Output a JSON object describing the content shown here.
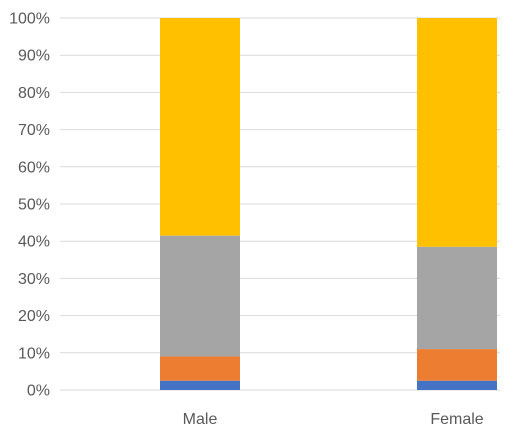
{
  "chart_data": {
    "type": "bar",
    "stacked": true,
    "categories": [
      "Male",
      "Female"
    ],
    "series": [
      {
        "values": [
          2.5,
          2.5
        ],
        "color": "#4472C4"
      },
      {
        "values": [
          6.5,
          8.5
        ],
        "color": "#ED7D31"
      },
      {
        "values": [
          32.5,
          27.5
        ],
        "color": "#A5A5A5"
      },
      {
        "values": [
          58.5,
          61.5
        ],
        "color": "#FFC000"
      }
    ],
    "yticks": [
      "0%",
      "10%",
      "20%",
      "30%",
      "40%",
      "50%",
      "60%",
      "70%",
      "80%",
      "90%",
      "100%"
    ],
    "ylim": [
      0,
      100
    ],
    "grid": true,
    "gridColor": "#D9D9D9",
    "title": "",
    "xlabel": "",
    "ylabel": ""
  }
}
